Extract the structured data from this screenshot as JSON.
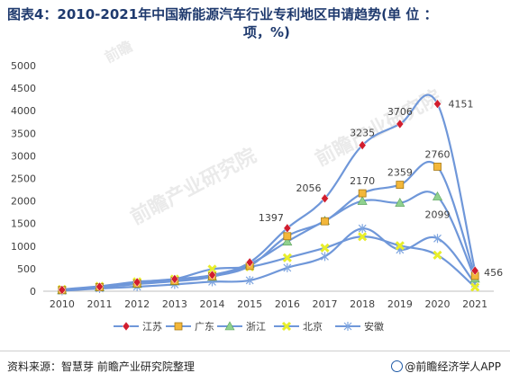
{
  "title_line1": "图表4：2010-2021年中国新能源汽车行业专利地区申请趋势(单 位 ：",
  "title_line2": "项，%)",
  "source": "资料来源：智慧芽 前瞻产业研究院整理",
  "brand": "@前瞻经济学人APP",
  "watermarks": [
    "前瞻产业研究院",
    "前瞻产业研究院",
    "前瞻"
  ],
  "colors": {
    "title": "#1f3a6e",
    "line": "#6f97d9",
    "js_marker": "#d11d2e",
    "gd_marker": "#f3b73a",
    "zj_marker": "#8fd18f",
    "bj_marker": "#e8ee2a",
    "ah_marker": "#7fa6e0"
  },
  "chart_data": {
    "type": "line",
    "title": "图表4：2010-2021年中国新能源汽车行业专利地区申请趋势(单 位 ：项，%)",
    "categories": [
      "2010",
      "2011",
      "2012",
      "2013",
      "2014",
      "2015",
      "2016",
      "2017",
      "2018",
      "2019",
      "2020",
      "2021"
    ],
    "ylim": [
      0,
      5000
    ],
    "yticks": [
      0,
      500,
      1000,
      1500,
      2000,
      2500,
      3000,
      3500,
      4000,
      4500,
      5000
    ],
    "grid": false,
    "legend_position": "bottom",
    "series": [
      {
        "name": "江苏",
        "marker": "diamond",
        "values": [
          30,
          100,
          200,
          270,
          360,
          640,
          1397,
          2056,
          3235,
          3706,
          4151,
          456
        ],
        "labels": {
          "6": "1397",
          "7": "2056",
          "8": "3235",
          "9": "3706",
          "10": "4151",
          "11": "456"
        }
      },
      {
        "name": "广东",
        "marker": "square",
        "values": [
          25,
          90,
          170,
          230,
          330,
          560,
          1220,
          1550,
          2170,
          2359,
          2760,
          340
        ],
        "labels": {
          "8": "2170",
          "9": "2359",
          "10": "2760"
        }
      },
      {
        "name": "浙江",
        "marker": "triangle",
        "values": [
          20,
          85,
          160,
          220,
          320,
          600,
          1100,
          1560,
          2000,
          1960,
          2099,
          280
        ],
        "labels": {
          "10": "2099"
        }
      },
      {
        "name": "北京",
        "marker": "x",
        "values": [
          40,
          110,
          210,
          270,
          490,
          540,
          740,
          960,
          1210,
          1010,
          800,
          90
        ],
        "labels": {}
      },
      {
        "name": "安徽",
        "marker": "asterisk",
        "values": [
          10,
          60,
          100,
          150,
          210,
          240,
          520,
          770,
          1390,
          920,
          1170,
          170
        ],
        "labels": {}
      }
    ]
  }
}
